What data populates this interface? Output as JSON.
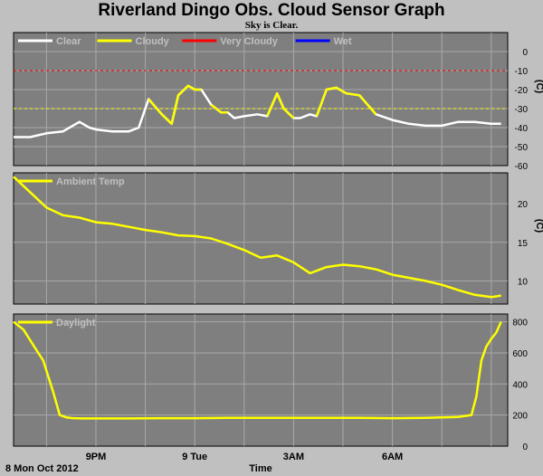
{
  "title": "Riverland Dingo Obs. Cloud Sensor Graph",
  "subtitle": "Sky is Clear.",
  "footer": {
    "date_label": "8 Mon Oct 2012",
    "xlabel": "Time"
  },
  "chart_data": [
    {
      "type": "line",
      "panel": "cloud",
      "ylabel": "(C)",
      "ylim": [
        -60,
        10
      ],
      "yticks": [
        0,
        -10,
        -20,
        -30,
        -40,
        -50,
        -60
      ],
      "thresholds": [
        {
          "value": -10,
          "color": "#ff0000"
        },
        {
          "value": -30,
          "color": "#ffff00"
        }
      ],
      "legend": [
        {
          "name": "Clear",
          "color": "#ffffff"
        },
        {
          "name": "Cloudy",
          "color": "#ffff00"
        },
        {
          "name": "Very Cloudy",
          "color": "#ff0000"
        },
        {
          "name": "Wet",
          "color": "#0000ff"
        }
      ],
      "x": [
        18.5,
        19,
        19.5,
        20,
        20.5,
        20.8,
        21,
        21.5,
        22,
        22.3,
        22.6,
        23,
        23.3,
        23.5,
        23.8,
        24,
        24.2,
        24.5,
        24.8,
        25,
        25.2,
        25.5,
        25.9,
        26.2,
        26.5,
        26.7,
        27,
        27.2,
        27.5,
        27.7,
        28,
        28.3,
        28.6,
        29,
        29.5,
        30,
        30.5,
        31,
        31.5,
        32,
        32.5,
        33,
        33.3
      ],
      "series_points": [
        {
          "name": "Clear",
          "color": "#ffffff",
          "y": [
            -45,
            -45,
            -43,
            -42,
            -37,
            -40,
            -41,
            -42,
            -42,
            -40,
            -25,
            -33,
            -38,
            -23,
            -18,
            -20,
            -20,
            -28,
            -32,
            -32,
            -35,
            -34,
            -33,
            -34,
            -22,
            -30,
            -35,
            -35,
            -33,
            -34,
            -20,
            -19,
            -22,
            -23,
            -33,
            -36,
            -38,
            -39,
            -39,
            -37,
            -37,
            -38,
            -38
          ]
        },
        {
          "name": "Cloudy",
          "color": "#ffff00",
          "segments": [
            [
              10,
              16
            ],
            [
              17,
              19
            ],
            [
              23,
              26
            ],
            [
              29,
              34
            ]
          ]
        }
      ]
    },
    {
      "type": "line",
      "panel": "ambient",
      "ylabel": "(C)",
      "ylim": [
        7,
        24
      ],
      "yticks": [
        20,
        15,
        10
      ],
      "legend": [
        {
          "name": "Ambient Temp",
          "color": "#ffff00"
        }
      ],
      "series": [
        {
          "name": "Ambient Temp",
          "color": "#ffff00",
          "x": [
            18.5,
            19,
            19.5,
            20,
            20.5,
            21,
            21.5,
            22,
            22.5,
            23,
            23.5,
            24,
            24.5,
            25,
            25.5,
            26,
            26.5,
            27,
            27.5,
            28,
            28.5,
            29,
            29.5,
            30,
            30.5,
            31,
            31.5,
            32,
            32.5,
            33,
            33.3
          ],
          "y": [
            23.5,
            21.5,
            19.5,
            18.5,
            18.2,
            17.6,
            17.4,
            17.0,
            16.6,
            16.3,
            15.9,
            15.8,
            15.5,
            14.8,
            14.0,
            13.0,
            13.3,
            12.4,
            11.0,
            11.8,
            12.1,
            11.9,
            11.5,
            10.8,
            10.4,
            10.0,
            9.5,
            8.8,
            8.2,
            7.9,
            8.1
          ]
        }
      ]
    },
    {
      "type": "line",
      "panel": "daylight",
      "ylim": [
        0,
        850
      ],
      "yticks": [
        800,
        600,
        400,
        200,
        0
      ],
      "legend": [
        {
          "name": "Daylight",
          "color": "#ffff00"
        }
      ],
      "series": [
        {
          "name": "Daylight",
          "color": "#ffff00",
          "x": [
            18.5,
            18.8,
            19.1,
            19.4,
            19.7,
            19.9,
            20.1,
            20.3,
            20.6,
            21,
            22,
            23,
            24,
            25,
            26,
            27,
            28,
            29,
            30,
            31,
            32,
            32.4,
            32.55,
            32.7,
            32.85,
            33,
            33.15,
            33.3
          ],
          "y": [
            800,
            750,
            650,
            550,
            350,
            200,
            185,
            180,
            178,
            178,
            178,
            180,
            180,
            182,
            182,
            182,
            182,
            182,
            180,
            182,
            188,
            200,
            320,
            550,
            640,
            690,
            730,
            800
          ]
        }
      ]
    }
  ],
  "xaxis": {
    "range": [
      18.5,
      33.5
    ],
    "ticks": [
      {
        "value": 21,
        "label": "9PM"
      },
      {
        "value": 24,
        "label": "9 Tue"
      },
      {
        "value": 27,
        "label": "3AM"
      },
      {
        "value": 30,
        "label": "6AM"
      }
    ],
    "grid": [
      19.5,
      21,
      22.5,
      24,
      25.5,
      27,
      28.5,
      30,
      31.5,
      33
    ]
  }
}
